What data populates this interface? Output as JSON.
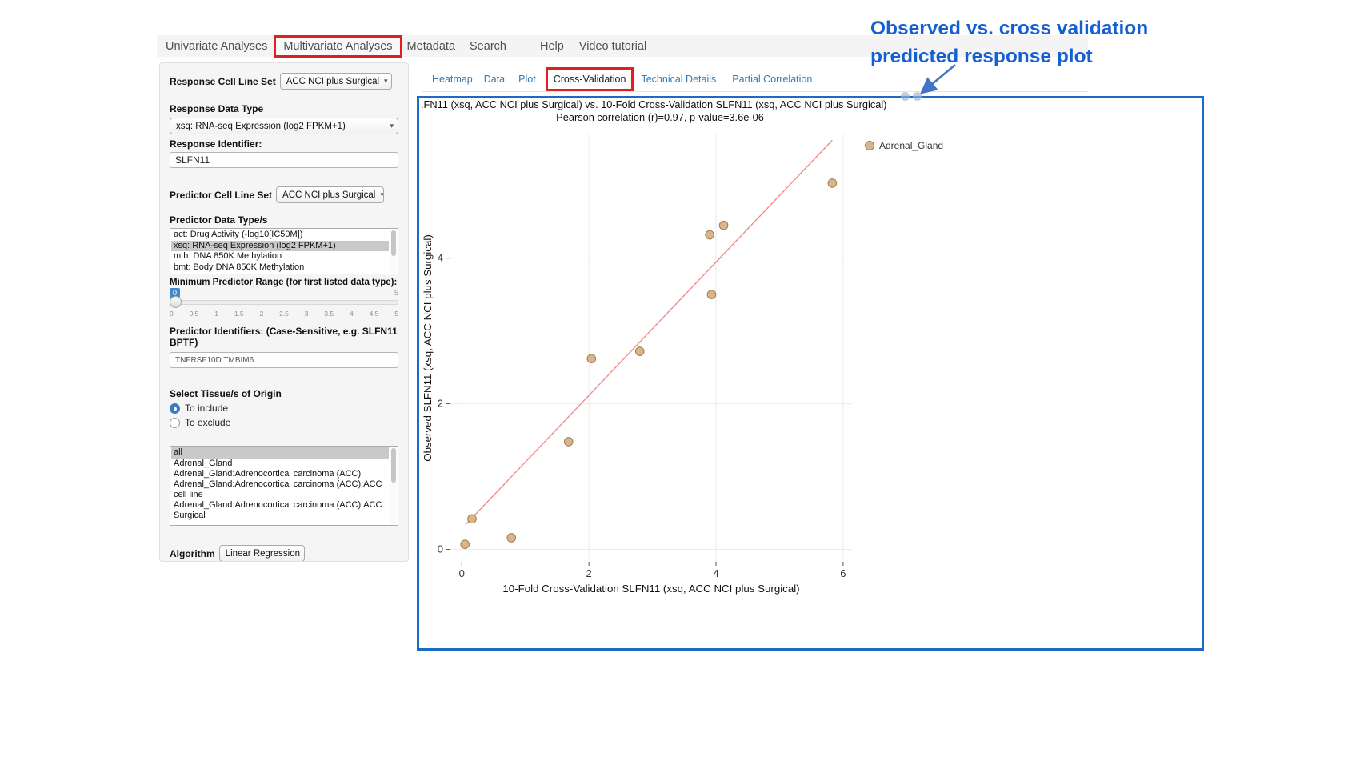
{
  "nav": {
    "items": [
      "Univariate Analyses",
      "Multivariate Analyses",
      "Metadata",
      "Search",
      "Help",
      "Video tutorial"
    ]
  },
  "subtabs": {
    "items": [
      "Heatmap",
      "Data",
      "Plot",
      "Cross-Validation",
      "Technical Details",
      "Partial Correlation"
    ]
  },
  "sidebar": {
    "response_cell_line_set": {
      "label": "Response Cell Line Set",
      "value": "ACC NCI plus Surgical"
    },
    "response_data_type": {
      "label": "Response Data Type",
      "value": "xsq: RNA-seq Expression (log2 FPKM+1)"
    },
    "response_identifier": {
      "label": "Response Identifier:",
      "value": "SLFN11"
    },
    "predictor_cell_line_set": {
      "label": "Predictor Cell Line Set",
      "value": "ACC NCI plus Surgical"
    },
    "predictor_data_types": {
      "label": "Predictor Data Type/s",
      "options": [
        {
          "label": "act: Drug Activity (-log10[IC50M])",
          "selected": false
        },
        {
          "label": "xsq: RNA-seq Expression (log2 FPKM+1)",
          "selected": true
        },
        {
          "label": "mth: DNA 850K Methylation",
          "selected": false
        },
        {
          "label": "bmt: Body DNA 850K Methylation",
          "selected": false
        }
      ]
    },
    "slider": {
      "label": "Minimum Predictor Range (for first listed data type):",
      "value": "0",
      "max": "5",
      "ticks": [
        "0",
        "0.5",
        "1",
        "1.5",
        "2",
        "2.5",
        "3",
        "3.5",
        "4",
        "4.5",
        "5"
      ]
    },
    "predictor_identifiers": {
      "label": "Predictor Identifiers: (Case-Sensitive, e.g. SLFN11 BPTF)",
      "value": "TNFRSF10D TMBIM6"
    },
    "tissue_origin": {
      "label": "Select Tissue/s of Origin",
      "modes": [
        {
          "label": "To include",
          "selected": true
        },
        {
          "label": "To exclude",
          "selected": false
        }
      ],
      "options": [
        {
          "label": "all",
          "selected": true
        },
        {
          "label": "Adrenal_Gland",
          "selected": false
        },
        {
          "label": "Adrenal_Gland:Adrenocortical carcinoma (ACC)",
          "selected": false
        },
        {
          "label": "Adrenal_Gland:Adrenocortical carcinoma (ACC):ACC cell line",
          "selected": false
        },
        {
          "label": "Adrenal_Gland:Adrenocortical carcinoma (ACC):ACC Surgical",
          "selected": false
        }
      ]
    },
    "algorithm": {
      "label": "Algorithm",
      "value": "Linear Regression"
    }
  },
  "annotation": {
    "line1": "Observed vs. cross validation",
    "line2": "predicted response plot",
    "text_color": "#155fd4",
    "arrow_color": "#4472c4"
  },
  "colors": {
    "panel_border": "#1a6bc4",
    "highlight_box": "#e0201f",
    "tab_link": "#337ab7"
  },
  "chart_data": {
    "type": "scatter",
    "title": ".FN11 (xsq, ACC NCI plus Surgical) vs. 10-Fold Cross-Validation SLFN11 (xsq, ACC NCI plus Surgical)",
    "subtitle": "Pearson correlation (r)=0.97, p-value=3.6e-06",
    "xlabel": "10-Fold Cross-Validation SLFN11 (xsq, ACC NCI plus Surgical)",
    "ylabel": "Observed SLFN11 (xsq, ACC NCI plus Surgical)",
    "xlim": [
      -0.18,
      6.14
    ],
    "ylim": [
      -0.17,
      5.7
    ],
    "xticks": [
      0,
      2,
      4,
      6
    ],
    "yticks": [
      0,
      2,
      4
    ],
    "grid": true,
    "legend": {
      "position": "right-top",
      "entries": [
        {
          "label": "Adrenal_Gland",
          "color": "#d9b589",
          "border": "#9c7d52"
        }
      ]
    },
    "points": [
      {
        "x": 0.05,
        "y": 0.07
      },
      {
        "x": 0.16,
        "y": 0.42
      },
      {
        "x": 0.78,
        "y": 0.16
      },
      {
        "x": 1.68,
        "y": 1.48
      },
      {
        "x": 2.04,
        "y": 2.62
      },
      {
        "x": 2.8,
        "y": 2.72
      },
      {
        "x": 3.93,
        "y": 3.5
      },
      {
        "x": 3.9,
        "y": 4.32
      },
      {
        "x": 4.12,
        "y": 4.45
      },
      {
        "x": 5.83,
        "y": 5.03
      }
    ],
    "fit_line": {
      "x1": 0.06,
      "y1": 0.34,
      "x2": 5.83,
      "y2": 5.62,
      "color": "#f08d8d"
    },
    "point_style": {
      "fill": "#d9b589",
      "stroke": "#9c7d52",
      "radius": 5.3
    }
  }
}
